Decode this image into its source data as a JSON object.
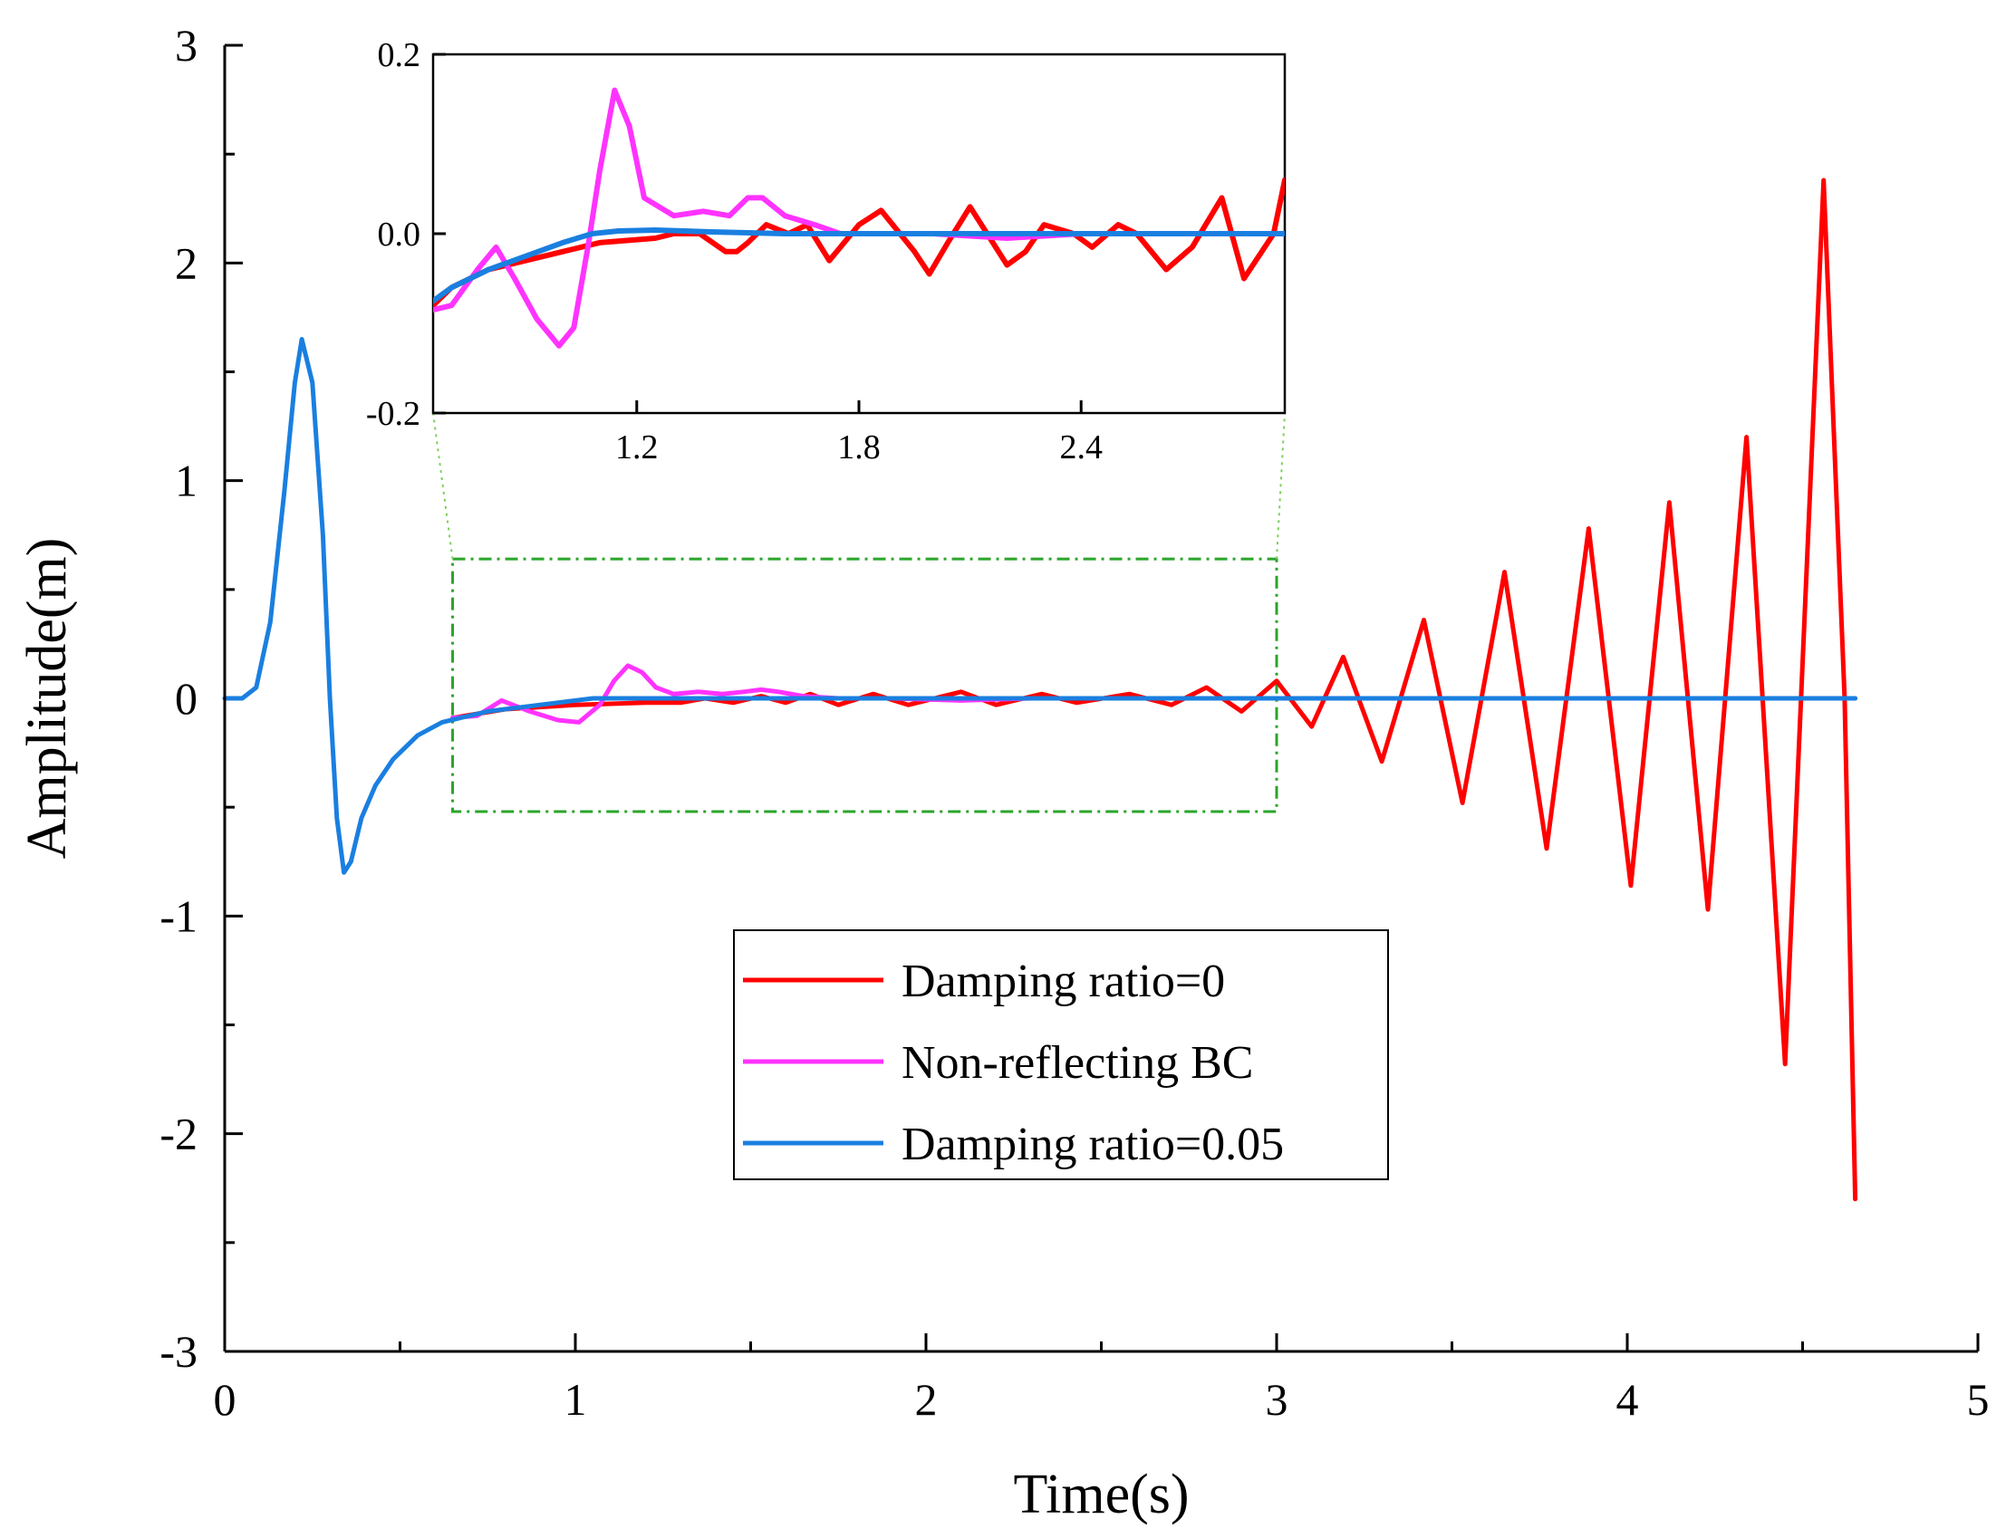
{
  "chart_data": {
    "type": "line",
    "title": "",
    "xlabel": "Time(s)",
    "ylabel": "Amplitude(m)",
    "xlim": [
      0,
      5
    ],
    "ylim": [
      -3,
      3
    ],
    "x_ticks": [
      "0",
      "1",
      "2",
      "3",
      "4",
      "5"
    ],
    "y_ticks": [
      "-3",
      "-2",
      "-1",
      "0",
      "1",
      "2",
      "3"
    ],
    "legend_position": "bottom-center",
    "series": [
      {
        "name": "Damping ratio=0",
        "color": "#ff0000",
        "points": [
          [
            0.65,
            -0.09
          ],
          [
            0.8,
            -0.05
          ],
          [
            1.0,
            -0.03
          ],
          [
            1.2,
            -0.02
          ],
          [
            1.3,
            -0.02
          ],
          [
            1.37,
            0.0
          ],
          [
            1.45,
            -0.02
          ],
          [
            1.53,
            0.01
          ],
          [
            1.6,
            -0.02
          ],
          [
            1.67,
            0.02
          ],
          [
            1.75,
            -0.03
          ],
          [
            1.85,
            0.02
          ],
          [
            1.95,
            -0.03
          ],
          [
            2.1,
            0.03
          ],
          [
            2.2,
            -0.03
          ],
          [
            2.33,
            0.02
          ],
          [
            2.43,
            -0.02
          ],
          [
            2.58,
            0.02
          ],
          [
            2.7,
            -0.03
          ],
          [
            2.8,
            0.05
          ],
          [
            2.9,
            -0.06
          ],
          [
            3.0,
            0.08
          ],
          [
            3.1,
            -0.13
          ],
          [
            3.19,
            0.19
          ],
          [
            3.3,
            -0.29
          ],
          [
            3.42,
            0.36
          ],
          [
            3.53,
            -0.48
          ],
          [
            3.65,
            0.58
          ],
          [
            3.77,
            -0.69
          ],
          [
            3.89,
            0.78
          ],
          [
            4.01,
            -0.86
          ],
          [
            4.12,
            0.9
          ],
          [
            4.23,
            -0.97
          ],
          [
            4.34,
            1.2
          ],
          [
            4.45,
            -1.68
          ],
          [
            4.56,
            2.38
          ],
          [
            4.62,
            0.0
          ],
          [
            4.65,
            -2.3
          ]
        ]
      },
      {
        "name": "Non-reflecting BC",
        "color": "#ff33ff",
        "points": [
          [
            0.65,
            -0.09
          ],
          [
            0.72,
            -0.08
          ],
          [
            0.79,
            -0.01
          ],
          [
            0.87,
            -0.06
          ],
          [
            0.95,
            -0.1
          ],
          [
            1.01,
            -0.11
          ],
          [
            1.07,
            -0.03
          ],
          [
            1.11,
            0.08
          ],
          [
            1.15,
            0.15
          ],
          [
            1.19,
            0.12
          ],
          [
            1.23,
            0.05
          ],
          [
            1.28,
            0.02
          ],
          [
            1.35,
            0.03
          ],
          [
            1.42,
            0.02
          ],
          [
            1.48,
            0.03
          ],
          [
            1.53,
            0.04
          ],
          [
            1.58,
            0.03
          ],
          [
            1.65,
            0.01
          ],
          [
            1.75,
            0.0
          ],
          [
            1.9,
            0.0
          ],
          [
            2.1,
            -0.01
          ],
          [
            2.3,
            0.0
          ],
          [
            2.6,
            0.0
          ],
          [
            2.8,
            0.0
          ],
          [
            3.0,
            0.0
          ],
          [
            4.65,
            0.0
          ]
        ]
      },
      {
        "name": "Damping ratio=0.05",
        "color": "#1a7fe0",
        "points": [
          [
            0.0,
            0.0
          ],
          [
            0.05,
            0.0
          ],
          [
            0.09,
            0.05
          ],
          [
            0.13,
            0.35
          ],
          [
            0.17,
            0.95
          ],
          [
            0.2,
            1.45
          ],
          [
            0.22,
            1.65
          ],
          [
            0.25,
            1.45
          ],
          [
            0.28,
            0.75
          ],
          [
            0.3,
            0.0
          ],
          [
            0.32,
            -0.55
          ],
          [
            0.34,
            -0.8
          ],
          [
            0.36,
            -0.75
          ],
          [
            0.39,
            -0.55
          ],
          [
            0.43,
            -0.4
          ],
          [
            0.48,
            -0.28
          ],
          [
            0.55,
            -0.17
          ],
          [
            0.62,
            -0.11
          ],
          [
            0.75,
            -0.06
          ],
          [
            0.9,
            -0.03
          ],
          [
            1.05,
            0.0
          ],
          [
            1.2,
            0.0
          ],
          [
            1.5,
            0.0
          ],
          [
            4.65,
            0.0
          ]
        ]
      }
    ],
    "zoom_region": {
      "xlim": [
        0.65,
        3.0
      ],
      "ylim": [
        -0.52,
        0.64
      ]
    },
    "inset": {
      "xlim": [
        0.65,
        2.95
      ],
      "ylim": [
        -0.2,
        0.2
      ],
      "x_ticks": [
        "1.2",
        "1.8",
        "2.4"
      ],
      "y_ticks": [
        "0.2",
        "0.0",
        "-0.2"
      ],
      "series": [
        {
          "name": "Damping ratio=0",
          "color": "#ff0000",
          "points": [
            [
              0.65,
              -0.08
            ],
            [
              0.7,
              -0.06
            ],
            [
              0.8,
              -0.04
            ],
            [
              0.9,
              -0.03
            ],
            [
              1.0,
              -0.02
            ],
            [
              1.1,
              -0.01
            ],
            [
              1.25,
              -0.005
            ],
            [
              1.3,
              0.0
            ],
            [
              1.37,
              0.0
            ],
            [
              1.44,
              -0.02
            ],
            [
              1.47,
              -0.02
            ],
            [
              1.5,
              -0.01
            ],
            [
              1.55,
              0.01
            ],
            [
              1.61,
              0.0
            ],
            [
              1.66,
              0.01
            ],
            [
              1.72,
              -0.03
            ],
            [
              1.8,
              0.01
            ],
            [
              1.86,
              0.026
            ],
            [
              1.95,
              -0.02
            ],
            [
              1.99,
              -0.045
            ],
            [
              2.04,
              -0.01
            ],
            [
              2.1,
              0.03
            ],
            [
              2.2,
              -0.035
            ],
            [
              2.25,
              -0.02
            ],
            [
              2.3,
              0.01
            ],
            [
              2.38,
              0.0
            ],
            [
              2.43,
              -0.015
            ],
            [
              2.5,
              0.01
            ],
            [
              2.55,
              0.0
            ],
            [
              2.63,
              -0.04
            ],
            [
              2.7,
              -0.015
            ],
            [
              2.78,
              0.04
            ],
            [
              2.84,
              -0.05
            ],
            [
              2.92,
              0.0
            ],
            [
              2.95,
              0.06
            ]
          ]
        },
        {
          "name": "Non-reflecting BC",
          "color": "#ff33ff",
          "points": [
            [
              0.65,
              -0.085
            ],
            [
              0.7,
              -0.08
            ],
            [
              0.77,
              -0.04
            ],
            [
              0.82,
              -0.015
            ],
            [
              0.87,
              -0.05
            ],
            [
              0.93,
              -0.095
            ],
            [
              0.99,
              -0.125
            ],
            [
              1.03,
              -0.105
            ],
            [
              1.07,
              -0.01
            ],
            [
              1.1,
              0.07
            ],
            [
              1.14,
              0.16
            ],
            [
              1.18,
              0.12
            ],
            [
              1.22,
              0.04
            ],
            [
              1.3,
              0.02
            ],
            [
              1.38,
              0.025
            ],
            [
              1.45,
              0.02
            ],
            [
              1.5,
              0.04
            ],
            [
              1.54,
              0.04
            ],
            [
              1.6,
              0.02
            ],
            [
              1.68,
              0.01
            ],
            [
              1.75,
              0.0
            ],
            [
              1.85,
              0.0
            ],
            [
              2.0,
              0.0
            ],
            [
              2.2,
              -0.005
            ],
            [
              2.4,
              0.0
            ],
            [
              2.6,
              0.0
            ],
            [
              2.95,
              0.0
            ]
          ]
        },
        {
          "name": "Damping ratio=0.05",
          "color": "#1a7fe0",
          "points": [
            [
              0.65,
              -0.075
            ],
            [
              0.7,
              -0.06
            ],
            [
              0.8,
              -0.04
            ],
            [
              0.9,
              -0.025
            ],
            [
              1.0,
              -0.01
            ],
            [
              1.08,
              0.0
            ],
            [
              1.15,
              0.003
            ],
            [
              1.25,
              0.004
            ],
            [
              1.4,
              0.002
            ],
            [
              1.6,
              0.0
            ],
            [
              2.0,
              0.0
            ],
            [
              2.95,
              0.0
            ]
          ]
        }
      ]
    }
  }
}
